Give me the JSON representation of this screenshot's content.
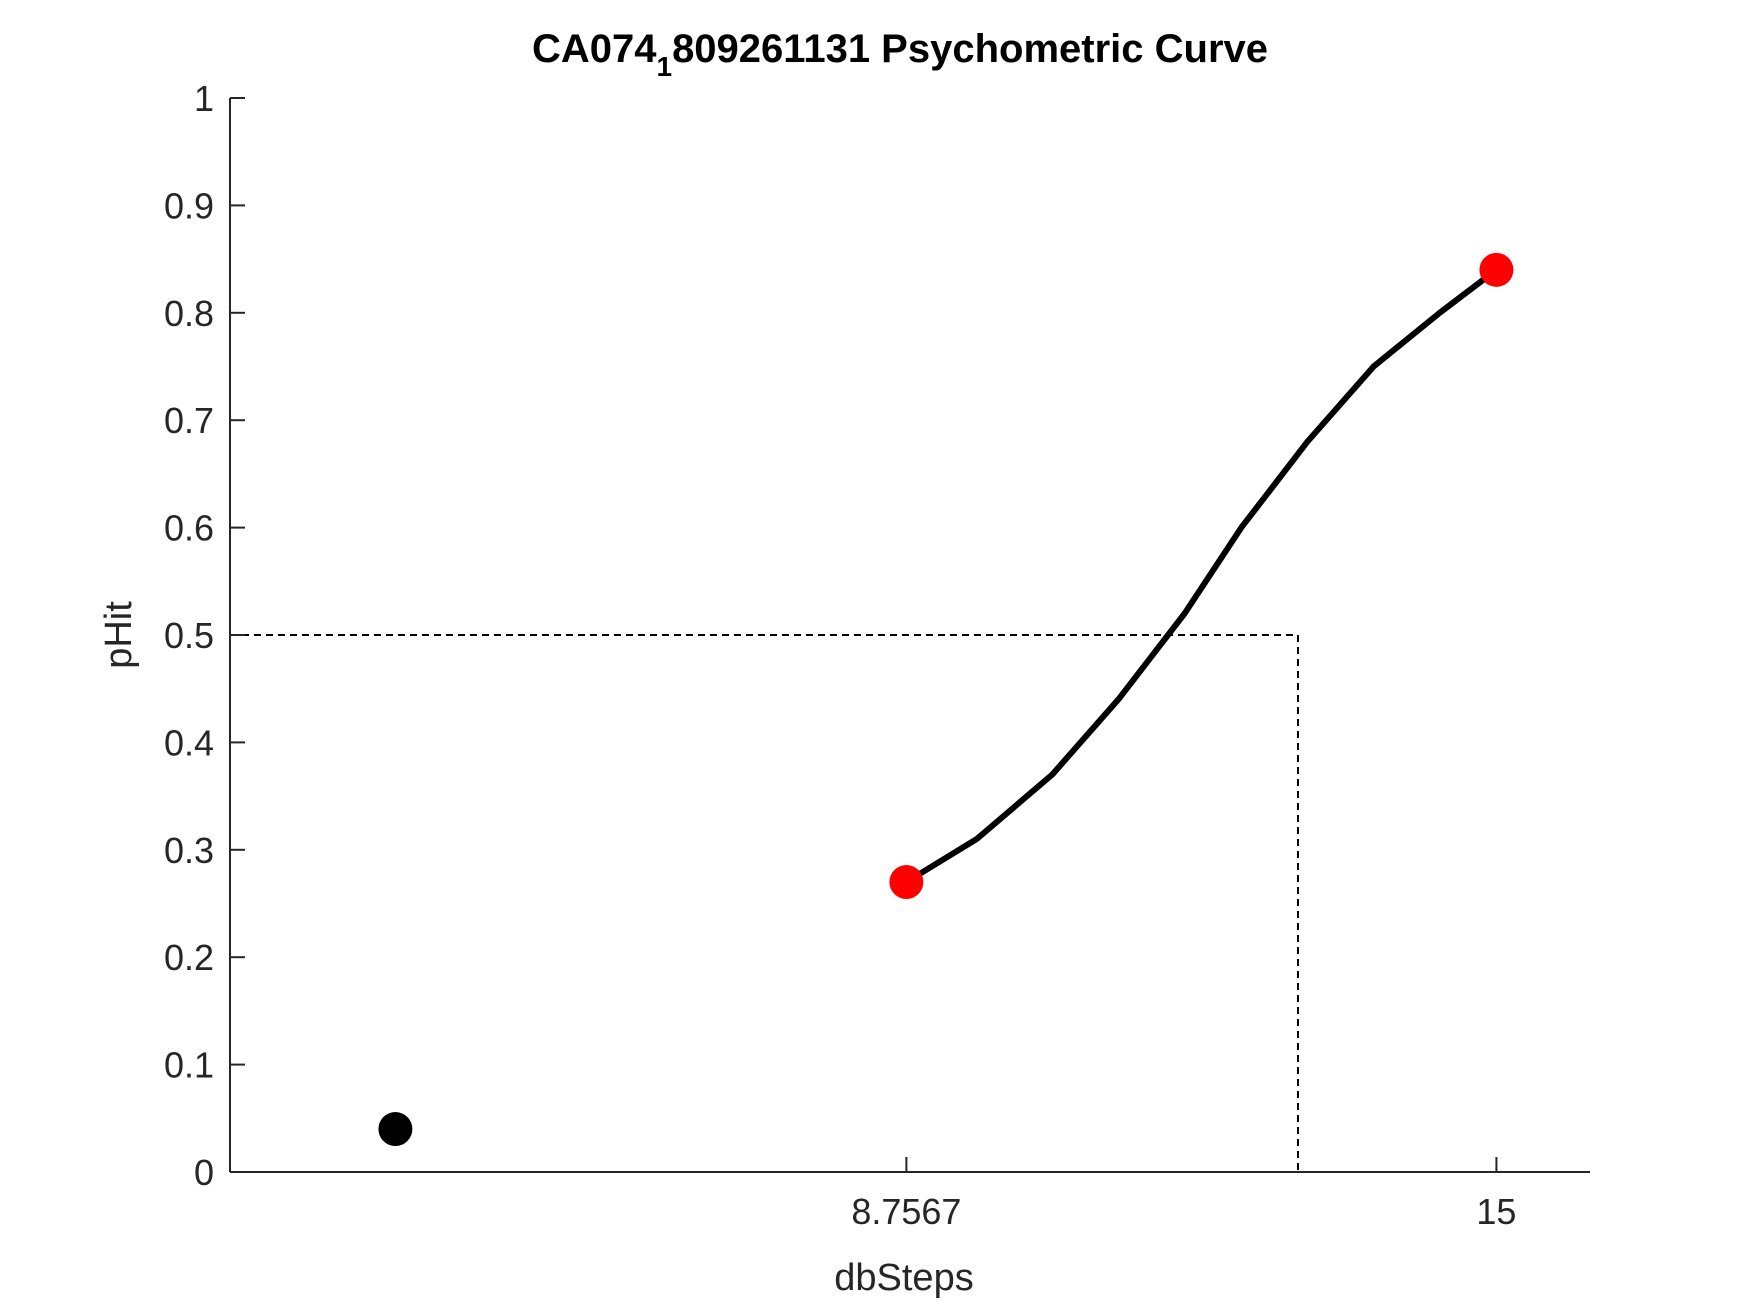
{
  "chart_data": {
    "type": "scatter",
    "title": "CA074",
    "title_subscript": "1",
    "title_rest": "809261131 Psychometric Curve",
    "xlabel": "dbSteps",
    "ylabel": "pHit",
    "xlim": [
      1.6,
      15.99
    ],
    "ylim": [
      0,
      1
    ],
    "xticks": [
      8.7567,
      15
    ],
    "xtick_labels": [
      "8.7567",
      "15"
    ],
    "yticks": [
      0,
      0.1,
      0.2,
      0.3,
      0.4,
      0.5,
      0.6,
      0.7,
      0.8,
      0.9,
      1
    ],
    "ytick_labels": [
      "0",
      "0.1",
      "0.2",
      "0.3",
      "0.4",
      "0.5",
      "0.6",
      "0.7",
      "0.8",
      "0.9",
      "1"
    ],
    "grid": false,
    "colors": {
      "axis": "#262626",
      "fit": "#000000",
      "points": "#ff0000",
      "catch": "#000000"
    },
    "series": [
      {
        "role": "catch_trial",
        "marker": "circle",
        "color": "#000000",
        "x": [
          3.35
        ],
        "y": [
          0.04
        ]
      },
      {
        "role": "data_points",
        "marker": "circle",
        "color": "#ff0000",
        "x": [
          8.7567,
          15
        ],
        "y": [
          0.27,
          0.84
        ]
      },
      {
        "role": "fit_curve",
        "line": "solid",
        "color": "#000000",
        "x": [
          8.7567,
          9.5,
          10.3,
          11.0,
          11.7,
          12.3,
          13.0,
          13.7,
          14.4,
          15
        ],
        "y": [
          0.27,
          0.31,
          0.37,
          0.44,
          0.52,
          0.6,
          0.68,
          0.75,
          0.8,
          0.84
        ]
      },
      {
        "role": "threshold_guide",
        "line": "dashed",
        "color": "#000000",
        "x": [
          1.6,
          12.9,
          12.9
        ],
        "y": [
          0.5,
          0.5,
          0
        ]
      }
    ]
  }
}
